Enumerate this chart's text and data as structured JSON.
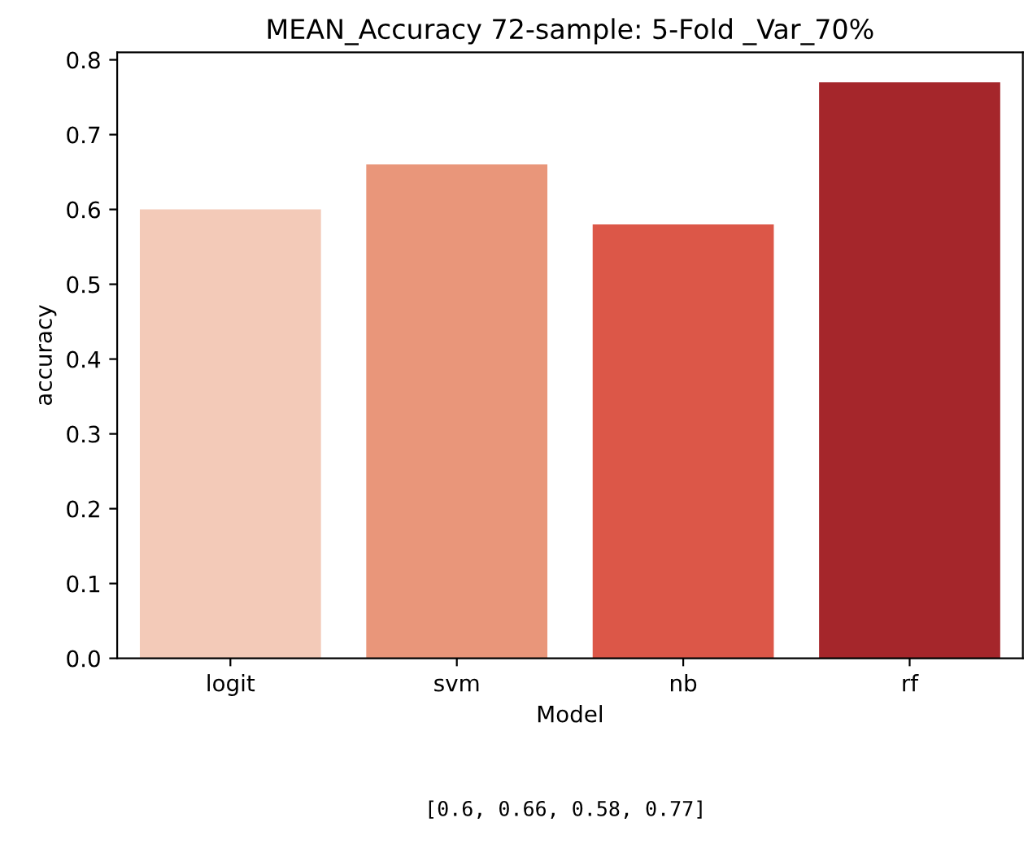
{
  "chart_data": {
    "type": "bar",
    "title": "MEAN_Accuracy 72-sample: 5-Fold _Var_70%",
    "xlabel": "Model",
    "ylabel": "accuracy",
    "categories": [
      "logit",
      "svm",
      "nb",
      "rf"
    ],
    "values": [
      0.6,
      0.66,
      0.58,
      0.77
    ],
    "colors": [
      "#f3cab8",
      "#e9967a",
      "#dc5748",
      "#a5262b"
    ],
    "ylim": [
      0,
      0.81
    ],
    "yticks": [
      {
        "value": 0,
        "label": "0.0"
      },
      0.1,
      0.2,
      0.3,
      0.4,
      0.5,
      0.6,
      0.7,
      0.8
    ],
    "annotations": [
      "[0.6, 0.66, 0.58, 0.77]"
    ],
    "grid": false,
    "legend": false
  }
}
